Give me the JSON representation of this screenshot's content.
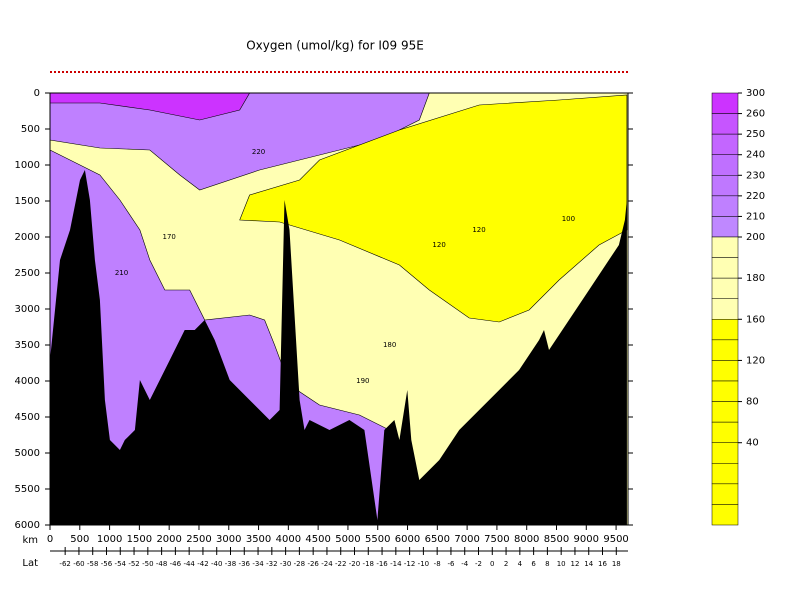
{
  "chart_data": {
    "type": "contour",
    "title": "Oxygen (umol/kg) for I09 95E",
    "x_label": "km",
    "lat_label": "Lat",
    "xlim": [
      0,
      9700
    ],
    "ylim": [
      0,
      6000
    ],
    "xticks": [
      0,
      500,
      1000,
      1500,
      2000,
      2500,
      3000,
      3500,
      4000,
      4500,
      5000,
      5500,
      6000,
      6500,
      7000,
      7500,
      8000,
      8500,
      9000,
      9500
    ],
    "yticks": [
      0,
      500,
      1000,
      1500,
      2000,
      2500,
      3000,
      3500,
      4000,
      4500,
      5000,
      5500,
      6000
    ],
    "lat_lim": [
      -64.2,
      19.7
    ],
    "lat_ticks": [
      -62,
      -60,
      -58,
      -56,
      -54,
      -52,
      -50,
      -48,
      -46,
      -44,
      -42,
      -40,
      -38,
      -36,
      -34,
      -32,
      -30,
      -28,
      -26,
      -24,
      -22,
      -20,
      -18,
      -16,
      -14,
      -12,
      -10,
      -8,
      -6,
      -4,
      -2,
      0,
      2,
      4,
      6,
      8,
      10,
      12,
      14,
      16,
      18
    ],
    "background_color": "#ffffb3",
    "regions": [
      {
        "color": "#bf80ff",
        "x": [
          0,
          6365,
          6198,
          5528,
          4523,
          3518,
          2513,
          2178,
          1675,
          838,
          0
        ],
        "depth": [
          0,
          0,
          375,
          653,
          861,
          1069,
          1347,
          1139,
          792,
          764,
          653
        ]
      },
      {
        "color": "#cc33ff",
        "x": [
          0,
          3350,
          3183,
          2513,
          1675,
          838,
          0
        ],
        "depth": [
          0,
          0,
          236,
          375,
          236,
          139,
          139
        ]
      },
      {
        "color": "#bf80ff",
        "x": [
          0,
          503,
          838,
          1173,
          1508,
          1675,
          1926,
          2345,
          2596,
          3350,
          3601,
          3769,
          4020,
          4523,
          5193,
          5695,
          5611,
          0
        ],
        "depth": [
          792,
          1000,
          1139,
          1486,
          1903,
          2319,
          2736,
          2736,
          3153,
          3083,
          3153,
          3500,
          4056,
          4333,
          4472,
          4681,
          6000,
          6000
        ]
      },
      {
        "color": "#ffff00",
        "x": [
          3183,
          3350,
          4188,
          4523,
          5863,
          7203,
          8543,
          9682,
          9682,
          9213,
          8543,
          8040,
          7538,
          7035,
          6365,
          5863,
          4858,
          3853
        ],
        "depth": [
          1764,
          1417,
          1208,
          931,
          514,
          167,
          97,
          28,
          1903,
          2111,
          2597,
          3014,
          3181,
          3125,
          2736,
          2389,
          2042,
          1792
        ]
      }
    ],
    "bottom": {
      "color": "#000000",
      "x": [
        0,
        168,
        335,
        503,
        586,
        670,
        754,
        838,
        921,
        1005,
        1173,
        1256,
        1424,
        1508,
        1675,
        1843,
        2010,
        2261,
        2429,
        2596,
        2764,
        3015,
        3350,
        3685,
        3853,
        3936,
        4020,
        4188,
        4271,
        4355,
        4690,
        5025,
        5276,
        5494,
        5611,
        5779,
        5863,
        5997,
        6064,
        6198,
        6365,
        6533,
        6868,
        7203,
        7538,
        7873,
        8208,
        8291,
        8375,
        8710,
        9045,
        9380,
        9548,
        9648,
        9682
      ],
      "depth": [
        3708,
        2319,
        1903,
        1208,
        1069,
        1486,
        2319,
        2875,
        4264,
        4819,
        4958,
        4819,
        4681,
        3986,
        4264,
        3986,
        3708,
        3292,
        3292,
        3153,
        3431,
        3986,
        4264,
        4542,
        4403,
        1486,
        1903,
        4264,
        4681,
        4542,
        4681,
        4542,
        4681,
        5931,
        4681,
        4542,
        4819,
        4125,
        4819,
        5375,
        5236,
        5097,
        4681,
        4403,
        4125,
        3847,
        3431,
        3292,
        3569,
        3153,
        2736,
        2319,
        2111,
        1764,
        1486
      ]
    },
    "contour_labels": [
      {
        "text": "120",
        "x": 6530,
        "depth": 2110
      },
      {
        "text": "120",
        "x": 7200,
        "depth": 1900
      },
      {
        "text": "100",
        "x": 8700,
        "depth": 1750
      },
      {
        "text": "170",
        "x": 2000,
        "depth": 2000
      },
      {
        "text": "180",
        "x": 5700,
        "depth": 3500
      },
      {
        "text": "190",
        "x": 5250,
        "depth": 4000
      },
      {
        "text": "220",
        "x": 3500,
        "depth": 820
      },
      {
        "text": "210",
        "x": 1200,
        "depth": 2500
      }
    ],
    "colorbar": {
      "colors": [
        "#cc33ff",
        "#c655ff",
        "#c366ff",
        "#bf70ff",
        "#bf78ff",
        "#bf80ff",
        "#bf88ff",
        "#ffffb3",
        "#ffffb3",
        "#ffffb3",
        "#ffffb3",
        "#ffff00",
        "#ffff00",
        "#ffff00",
        "#ffff00",
        "#ffff00",
        "#ffff00",
        "#ffff00",
        "#ffff00",
        "#ffff00",
        "#ffff00"
      ],
      "ticks": [
        300,
        260,
        250,
        240,
        230,
        220,
        210,
        200,
        180,
        160,
        120,
        80,
        40
      ]
    }
  }
}
